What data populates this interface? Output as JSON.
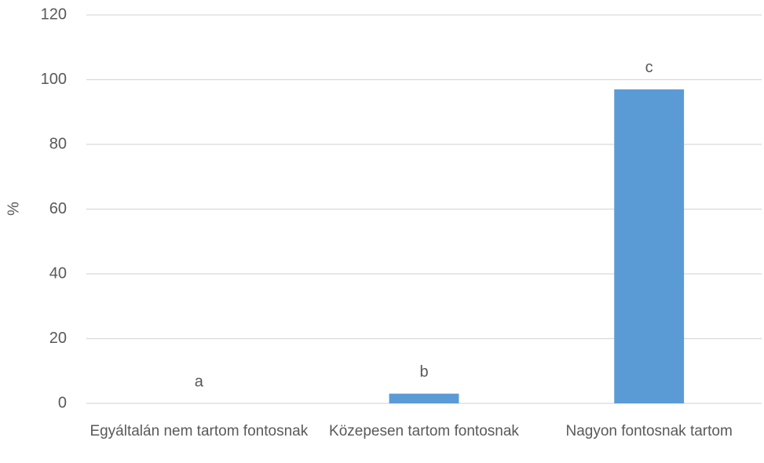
{
  "chart_data": {
    "type": "bar",
    "y_label": "%",
    "categories": [
      "Egyáltalán nem tartom fontosnak",
      "Közepesen tartom fontosnak",
      "Nagyon fontosnak tartom"
    ],
    "values": [
      0,
      3,
      97
    ],
    "annotations": [
      "a",
      "b",
      "c"
    ],
    "color": "#5b9bd5",
    "ylim": [
      0,
      120
    ],
    "yticks": [
      0,
      20,
      40,
      60,
      80,
      100,
      120
    ],
    "grid": true
  }
}
